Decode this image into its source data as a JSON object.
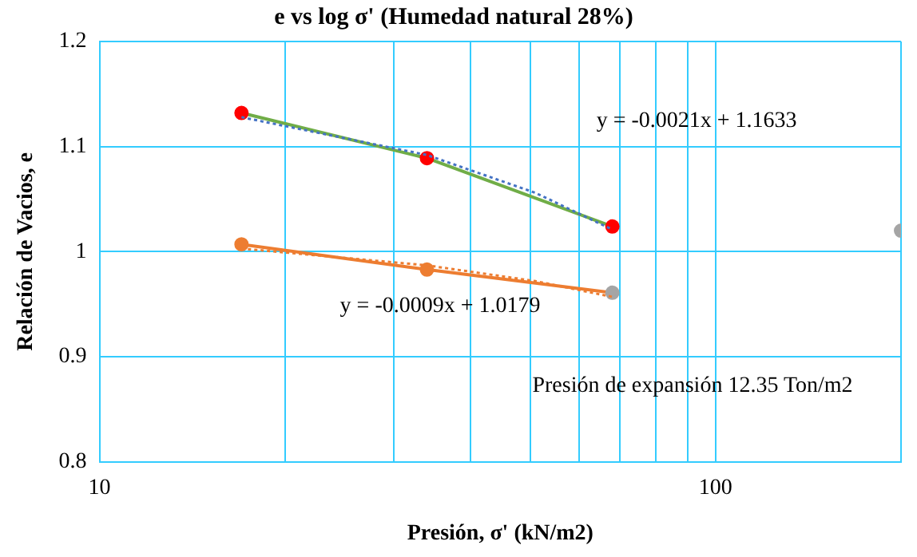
{
  "chart_data": {
    "type": "line",
    "title": "e vs log σ' (Humedad natural 28%)",
    "xlabel": "Presión, σ' (kN/m2)",
    "ylabel": "Relación de Vacios, e",
    "log": "x",
    "grid": true,
    "legend": false,
    "marker": "circle",
    "line_style": "solid",
    "xlim": [
      10,
      200
    ],
    "xticks": [
      10,
      {
        "value": 20,
        "label": null
      },
      {
        "value": 30,
        "label": null
      },
      {
        "value": 40,
        "label": null
      },
      {
        "value": 50,
        "label": null
      },
      {
        "value": 60,
        "label": null
      },
      {
        "value": 70,
        "label": null
      },
      {
        "value": 80,
        "label": null
      },
      {
        "value": 90,
        "label": null
      },
      100,
      {
        "value": 200,
        "label": null
      }
    ],
    "ylim": [
      0.8,
      1.2
    ],
    "yticks": [
      0.8,
      0.9,
      1,
      1.1,
      1.2
    ],
    "series": [
      {
        "color": "#70ad47",
        "colors": [
          "#ff0000",
          "#ff0000",
          "#ff0000"
        ],
        "x": [
          17,
          34,
          68
        ],
        "values": [
          1.132,
          1.089,
          1.024
        ]
      },
      {
        "color": "#ed7d31",
        "colors": [
          "#ed7d31",
          "#ed7d31",
          "#a5a5a5"
        ],
        "x": [
          17,
          34,
          68
        ],
        "values": [
          1.007,
          0.983,
          0.961
        ]
      },
      {
        "type": "line",
        "color": "#4472c4",
        "marker": "none",
        "line_style": "dotted",
        "x": [
          17,
          34,
          51,
          68
        ],
        "values": [
          1.128,
          1.092,
          1.056,
          1.021
        ]
      },
      {
        "type": "line",
        "color": "#ed7d31",
        "marker": "none",
        "line_style": "dotted",
        "x": [
          17,
          34,
          51,
          68
        ],
        "values": [
          1.003,
          0.987,
          0.972,
          0.957
        ]
      },
      {
        "type": "scatter",
        "color": "#a5a5a5",
        "x": [
          200
        ],
        "values": [
          1.02
        ]
      }
    ],
    "annotations": [
      "y = -0.0021x + 1.1633",
      "y = -0.0009x + 1.0179",
      "Presión de expansión 12.35 Ton/m2"
    ]
  }
}
